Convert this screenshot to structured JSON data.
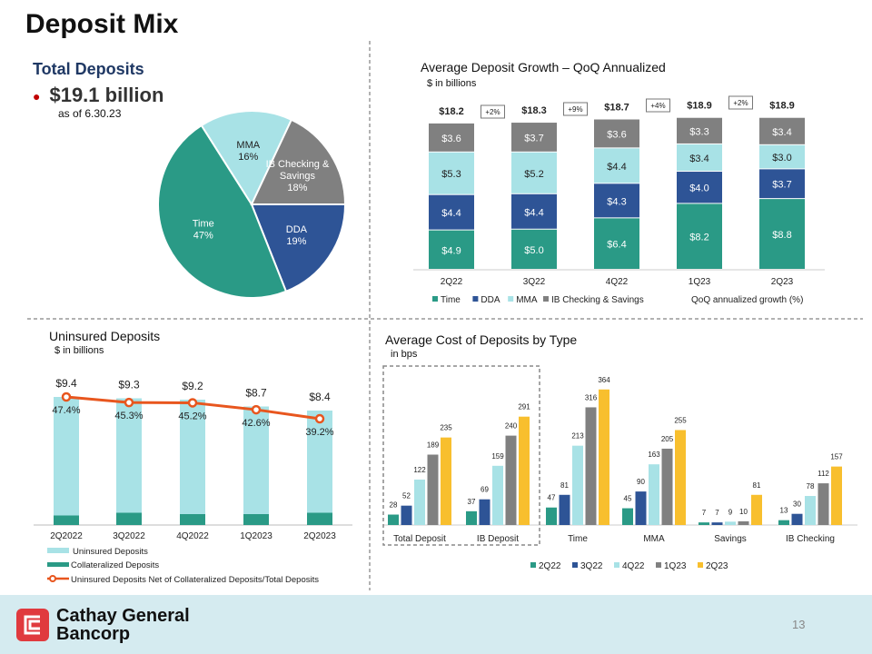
{
  "title": "Deposit Mix",
  "total_deposits": {
    "heading": "Total Deposits",
    "amount": "$19.1 billion",
    "as_of": "as of 6.30.23"
  },
  "page_number": "13",
  "logo": {
    "line1": "Cathay General",
    "line2": "Bancorp"
  },
  "colors": {
    "time": "#2a9a86",
    "dda": "#2e5496",
    "mma": "#a8e2e6",
    "ib": "#808080",
    "yellow": "#f8bf2e",
    "orange": "#e8561e",
    "footer": "#d5ebf0"
  },
  "chart_data": [
    {
      "type": "pie",
      "title": "Total Deposits",
      "slices": [
        {
          "label": "DDA",
          "value": 19,
          "pct": "19%",
          "color": "#2e5496"
        },
        {
          "label": "Time",
          "value": 47,
          "pct": "47%",
          "color": "#2a9a86"
        },
        {
          "label": "MMA",
          "value": 16,
          "pct": "16%",
          "color": "#a8e2e6"
        },
        {
          "label": "IB Checking & Savings",
          "label_lines": [
            "IB Checking &",
            "Savings"
          ],
          "value": 18,
          "pct": "18%",
          "color": "#808080"
        }
      ]
    },
    {
      "type": "bar",
      "stacked": true,
      "title": "Average Deposit Growth – QoQ Annualized",
      "subtitle": "$ in billions",
      "categories": [
        "2Q22",
        "3Q22",
        "4Q22",
        "1Q23",
        "2Q23"
      ],
      "series": [
        {
          "name": "Time",
          "color": "#2a9a86",
          "values": [
            4.9,
            5.0,
            6.4,
            8.2,
            8.8
          ],
          "labels": [
            "$4.9",
            "$5.0",
            "$6.4",
            "$8.2",
            "$8.8"
          ]
        },
        {
          "name": "DDA",
          "color": "#2e5496",
          "values": [
            4.4,
            4.4,
            4.3,
            4.0,
            3.7
          ],
          "labels": [
            "$4.4",
            "$4.4",
            "$4.3",
            "$4.0",
            "$3.7"
          ]
        },
        {
          "name": "MMA",
          "color": "#a8e2e6",
          "values": [
            5.3,
            5.2,
            4.4,
            3.4,
            3.0
          ],
          "labels": [
            "$5.3",
            "$5.2",
            "$4.4",
            "$3.4",
            "$3.0"
          ]
        },
        {
          "name": "IB Checking & Savings",
          "color": "#808080",
          "values": [
            3.6,
            3.7,
            3.6,
            3.3,
            3.4
          ],
          "labels": [
            "$3.6",
            "$3.7",
            "$3.6",
            "$3.3",
            "$3.4"
          ]
        }
      ],
      "totals": [
        "$18.2",
        "$18.3",
        "$18.7",
        "$18.9",
        "$18.9"
      ],
      "growth": [
        "+2%",
        "+9%",
        "+4%",
        "+2%"
      ],
      "growth_legend": "QoQ annualized growth (%)",
      "ylim": [
        0,
        20
      ],
      "legend": "bottom"
    },
    {
      "type": "bar",
      "title": "Uninsured Deposits",
      "subtitle": "$ in billions",
      "categories": [
        "2Q2022",
        "3Q2022",
        "4Q2022",
        "1Q2023",
        "2Q2023"
      ],
      "series": [
        {
          "name": "Uninsured Deposits",
          "color": "#a8e2e6",
          "values": [
            9.4,
            9.3,
            9.2,
            8.7,
            8.4
          ],
          "labels": [
            "$9.4",
            "$9.3",
            "$9.2",
            "$8.7",
            "$8.4"
          ]
        },
        {
          "name": "Collateralized Deposits",
          "color": "#2a9a86",
          "values": [
            0.7,
            0.9,
            0.8,
            0.8,
            0.9
          ]
        },
        {
          "name": "Uninsured Deposits Net of Collateralized Deposits/Total Deposits",
          "type": "line",
          "color": "#e8561e",
          "values": [
            47.4,
            45.3,
            45.2,
            42.6,
            39.2
          ],
          "labels": [
            "47.4%",
            "45.3%",
            "45.2%",
            "42.6%",
            "39.2%"
          ]
        }
      ],
      "legend": "bottom"
    },
    {
      "type": "bar",
      "title": "Average Cost of Deposits by Type",
      "subtitle": "in bps",
      "categories": [
        "Total Deposit",
        "IB Deposit",
        "Time",
        "MMA",
        "Savings",
        "IB Checking"
      ],
      "series": [
        {
          "name": "2Q22",
          "color": "#2a9a86",
          "values": [
            28,
            37,
            47,
            45,
            7,
            13
          ]
        },
        {
          "name": "3Q22",
          "color": "#2e5496",
          "values": [
            52,
            69,
            81,
            90,
            7,
            30
          ]
        },
        {
          "name": "4Q22",
          "color": "#a8e2e6",
          "values": [
            122,
            159,
            213,
            163,
            9,
            78
          ]
        },
        {
          "name": "1Q23",
          "color": "#808080",
          "values": [
            189,
            240,
            316,
            205,
            10,
            112
          ]
        },
        {
          "name": "2Q23",
          "color": "#f8bf2e",
          "values": [
            235,
            291,
            364,
            255,
            81,
            157
          ]
        }
      ],
      "legend": "bottom",
      "ylim": [
        0,
        380
      ]
    }
  ]
}
